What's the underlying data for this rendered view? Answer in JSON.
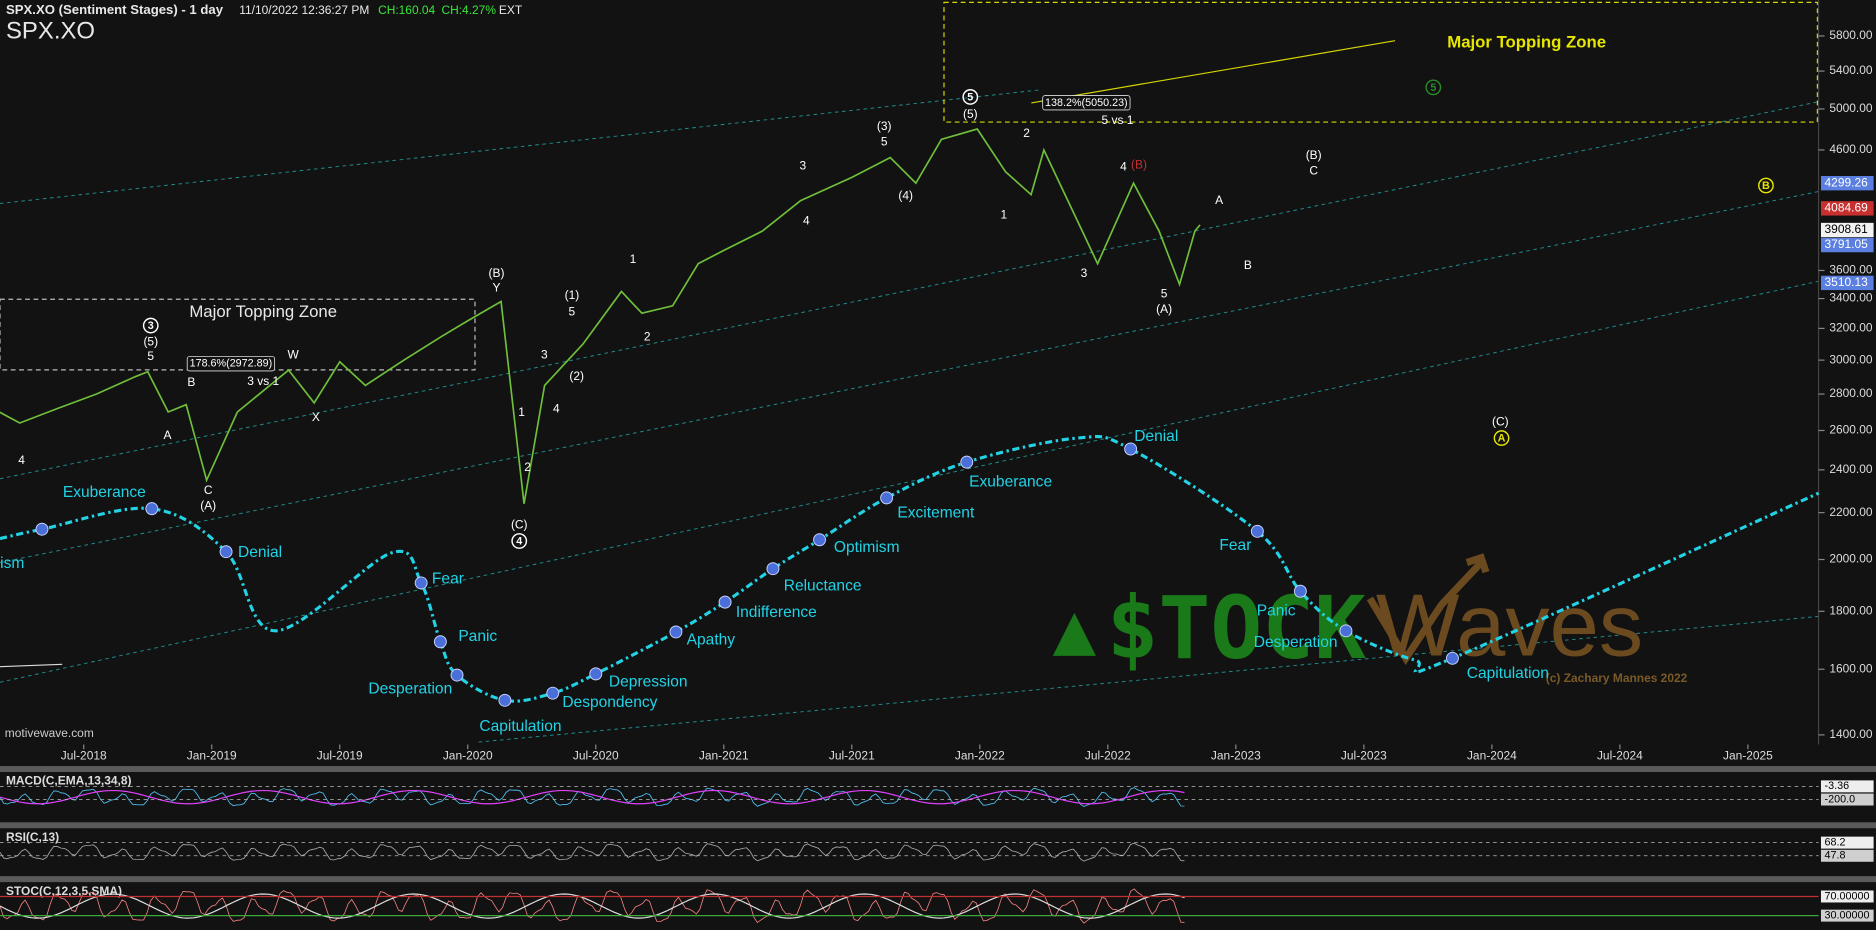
{
  "chart_data": {
    "type": "line",
    "title": "SPX.XO (Sentiment Stages) - 1 day",
    "symbol": "SPX.XO",
    "timestamp": "11/10/2022 12:36:27 PM",
    "change": "CH:160.04",
    "change_pct": "CH:4.27%",
    "session": "EXT",
    "watermark": "motivewave.com",
    "logo_left": "$TOCK",
    "logo_right": "Waves",
    "copyright": "(c) Zachary Mannes 2022",
    "log_scale": true,
    "xlim": [
      2018.173,
      2025.276
    ],
    "ylim": [
      1373,
      6240
    ],
    "xticks": [
      {
        "value": 2018.5,
        "label": "Jul-2018"
      },
      {
        "value": 2019.0,
        "label": "Jan-2019"
      },
      {
        "value": 2019.5,
        "label": "Jul-2019"
      },
      {
        "value": 2020.0,
        "label": "Jan-2020"
      },
      {
        "value": 2020.5,
        "label": "Jul-2020"
      },
      {
        "value": 2021.0,
        "label": "Jan-2021"
      },
      {
        "value": 2021.5,
        "label": "Jul-2021"
      },
      {
        "value": 2022.0,
        "label": "Jan-2022"
      },
      {
        "value": 2022.5,
        "label": "Jul-2022"
      },
      {
        "value": 2023.0,
        "label": "Jan-2023"
      },
      {
        "value": 2023.5,
        "label": "Jul-2023"
      },
      {
        "value": 2024.0,
        "label": "Jan-2024"
      },
      {
        "value": 2024.5,
        "label": "Jul-2024"
      },
      {
        "value": 2025.0,
        "label": "Jan-2025"
      }
    ],
    "yticks": [
      {
        "value": 1400,
        "label": "1400.00"
      },
      {
        "value": 1600,
        "label": "1600.00"
      },
      {
        "value": 1800,
        "label": "1800.00"
      },
      {
        "value": 2000,
        "label": "2000.00"
      },
      {
        "value": 2200,
        "label": "2200.00"
      },
      {
        "value": 2400,
        "label": "2400.00"
      },
      {
        "value": 2600,
        "label": "2600.00"
      },
      {
        "value": 2800,
        "label": "2800.00"
      },
      {
        "value": 3000,
        "label": "3000.00"
      },
      {
        "value": 3200,
        "label": "3200.00"
      },
      {
        "value": 3400,
        "label": "3400.00"
      },
      {
        "value": 3600,
        "label": "3600.00"
      },
      {
        "value": 4600,
        "label": "4600.00"
      },
      {
        "value": 5000,
        "label": "5000.00"
      },
      {
        "value": 5400,
        "label": "5400.00"
      },
      {
        "value": 5800,
        "label": "5800.00"
      }
    ],
    "series": [
      {
        "color": "#6fbf3a",
        "x": [
          2018.17,
          2018.25,
          2018.4,
          2018.55,
          2018.7,
          2018.75,
          2018.83,
          2018.9,
          2018.98,
          2019.1,
          2019.3,
          2019.4,
          2019.5,
          2019.6,
          2019.75,
          2019.9,
          2020.0,
          2020.13,
          2020.22,
          2020.3,
          2020.45,
          2020.6,
          2020.68,
          2020.8,
          2020.9,
          2021.0,
          2021.15,
          2021.3,
          2021.5,
          2021.65,
          2021.75,
          2021.85,
          2021.99,
          2022.1,
          2022.2,
          2022.25,
          2022.4,
          2022.46,
          2022.6,
          2022.7,
          2022.78,
          2022.84,
          2022.86
        ],
        "values": [
          2700,
          2640,
          2720,
          2800,
          2900,
          2930,
          2700,
          2740,
          2350,
          2700,
          2940,
          2750,
          2990,
          2850,
          3000,
          3150,
          3250,
          3380,
          2240,
          2850,
          3100,
          3450,
          3300,
          3350,
          3650,
          3750,
          3900,
          4150,
          4350,
          4530,
          4300,
          4700,
          4800,
          4400,
          4200,
          4600,
          3900,
          3650,
          4300,
          3900,
          3500,
          3900,
          3950
        ]
      },
      {
        "color": "#22d3e6",
        "x": [
          2018.173,
          2018.337,
          2018.766,
          2019.056,
          2019.248,
          2019.701,
          2019.818,
          2019.893,
          2019.958,
          2020.145,
          2020.332,
          2020.5,
          2020.813,
          2021.005,
          2021.192,
          2021.374,
          2021.636,
          2021.949,
          2022.379,
          2022.589,
          2023.084,
          2023.252,
          2023.43,
          2023.7,
          2023.846,
          2025.276
        ],
        "values": [
          2087,
          2127,
          2218,
          2032,
          1730,
          2027,
          1907,
          1692,
          1581,
          1502,
          1524,
          1585,
          1726,
          1834,
          1963,
          2082,
          2267,
          2438,
          2560,
          2504,
          2118,
          1875,
          1730,
          1630,
          1636,
          2289
        ],
        "point_labels": [
          null,
          "ism",
          "Exuberance",
          "Denial",
          null,
          null,
          "Fear",
          "Panic",
          "Desperation",
          "Capitulation",
          "Despondency",
          "Depression",
          "Apathy",
          "Indifference",
          "Reluctance",
          "Optimism",
          "Excitement",
          "Exuberance",
          null,
          "Denial",
          "Fear",
          "Panic",
          "Desperation",
          null,
          "Capitulation",
          null
        ]
      }
    ],
    "price_tags": [
      {
        "value": 4299.26,
        "color": "#5b7fe0"
      },
      {
        "value": 4084.69,
        "color": "#c83030"
      },
      {
        "value": 3908.61,
        "color": "#f2f2f2"
      },
      {
        "value": 3791.05,
        "color": "#5b7fe0"
      },
      {
        "value": 3510.13,
        "color": "#5b7fe0"
      }
    ],
    "annotations": [
      "Major Topping Zone",
      "Major Topping Zone",
      "178.6%(2972.89)",
      "138.2%(5050.23)",
      "5 vs 1",
      "3 vs 1",
      "(5)",
      "5",
      "B",
      "A",
      "C",
      "(A)",
      "W",
      "X",
      "(B)",
      "Y",
      "(C)",
      "1",
      "2",
      "3",
      "4",
      "(1)",
      "5",
      "(2)",
      "1",
      "2",
      "3",
      "4",
      "(3)",
      "5",
      "(4)",
      "(5)",
      "2",
      "1",
      "3",
      "4",
      "(B)",
      "5",
      "(A)",
      "A",
      "B",
      "(B)",
      "C",
      "(C)",
      "4"
    ],
    "circled_labels": [
      "3",
      "4",
      "5",
      "A",
      "B",
      "5"
    ],
    "indicators": [
      {
        "name": "MACD(C,EMA,13,34,8)",
        "tags": [
          -3.36,
          {
            "value": -200,
            "label": "-200.0"
          }
        ]
      },
      {
        "name": "RSI(C,13)",
        "tags": [
          68.2,
          47.8
        ]
      },
      {
        "name": "STOC(C,12,3,5,SMA)",
        "ylim": [
          0,
          100
        ],
        "tags": [
          {
            "value": 70,
            "label": "70.00000"
          },
          {
            "value": 30,
            "label": "30.00000"
          }
        ]
      }
    ]
  }
}
